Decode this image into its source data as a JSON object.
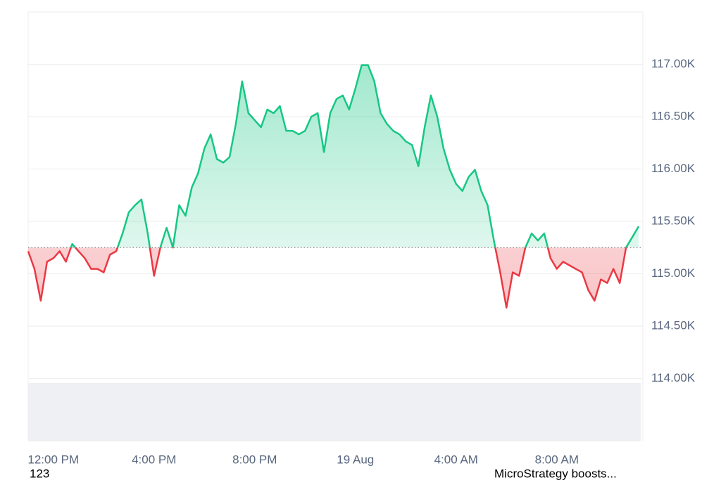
{
  "chart_data": {
    "type": "line",
    "categories": [
      null,
      null,
      null,
      null,
      "12:00 PM",
      null,
      null,
      null,
      null,
      null,
      null,
      null,
      null,
      null,
      null,
      null,
      null,
      null,
      null,
      null,
      "4:00 PM",
      null,
      null,
      null,
      null,
      null,
      null,
      null,
      null,
      null,
      null,
      null,
      null,
      null,
      null,
      null,
      "8:00 PM",
      null,
      null,
      null,
      null,
      null,
      null,
      null,
      null,
      null,
      null,
      null,
      null,
      null,
      null,
      null,
      "19 Aug",
      null,
      null,
      null,
      null,
      null,
      null,
      null,
      null,
      null,
      null,
      null,
      null,
      null,
      null,
      null,
      "4:00 AM",
      null,
      null,
      null,
      null,
      null,
      null,
      null,
      null,
      null,
      null,
      null,
      null,
      null,
      null,
      null,
      "8:00 AM",
      null,
      null,
      null,
      null,
      null,
      null,
      null,
      null,
      null,
      null,
      null,
      null,
      null
    ],
    "values": [
      115216,
      115047,
      114743,
      115115,
      115149,
      115216,
      115115,
      115284,
      115216,
      115149,
      115047,
      115047,
      115014,
      115182,
      115216,
      115385,
      115588,
      115655,
      115710,
      115385,
      114980,
      115250,
      115439,
      115250,
      115655,
      115554,
      115824,
      115959,
      116196,
      116331,
      116095,
      116061,
      116115,
      116432,
      116838,
      116534,
      116466,
      116399,
      116568,
      116534,
      116601,
      116365,
      116365,
      116331,
      116365,
      116500,
      116534,
      116162,
      116534,
      116669,
      116703,
      116568,
      116770,
      116993,
      116993,
      116838,
      116534,
      116432,
      116365,
      116331,
      116264,
      116230,
      116027,
      116399,
      116703,
      116500,
      116196,
      115993,
      115858,
      115791,
      115926,
      115993,
      115791,
      115655,
      115318,
      115014,
      114676,
      115014,
      114980,
      115250,
      115385,
      115318,
      115385,
      115149,
      115047,
      115115,
      115081,
      115047,
      115014,
      114845,
      114743,
      114946,
      114912,
      115047,
      114912,
      115250,
      115351,
      115453
    ],
    "baseline": 115250,
    "up_color": "#16c784",
    "down_color": "#ea3943",
    "ylim": [
      113400,
      117500
    ],
    "yticks": [
      {
        "value": 114000,
        "label": "114.00K"
      },
      {
        "value": 114500,
        "label": "114.50K"
      },
      {
        "value": 115000,
        "label": "115.00K"
      },
      {
        "value": 115500,
        "label": "115.50K"
      },
      {
        "value": 116000,
        "label": "116.00K"
      },
      {
        "value": 116500,
        "label": "116.50K"
      },
      {
        "value": 117000,
        "label": "117.00K"
      }
    ],
    "grid": true,
    "annotations": [
      "123",
      "MicroStrategy boosts..."
    ]
  }
}
